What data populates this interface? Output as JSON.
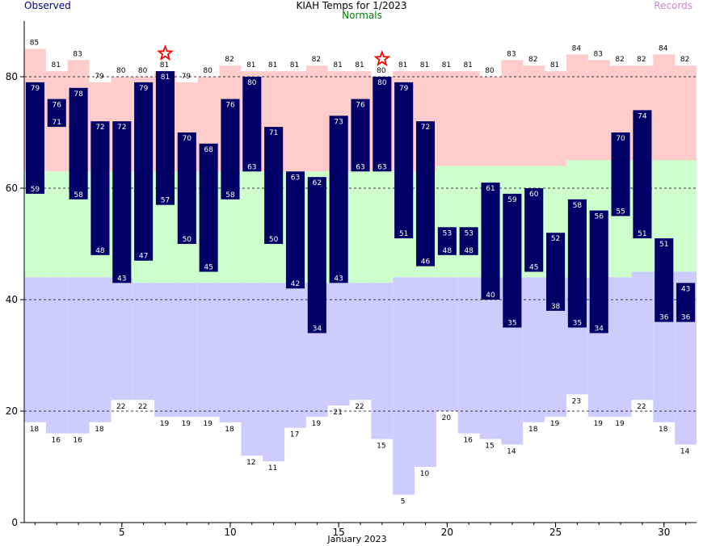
{
  "chart_data": {
    "type": "bar",
    "title": "KIAH Temps for 1/2023",
    "xlabel": "January 2023",
    "ylabel": "",
    "legend": {
      "observed": "Observed",
      "normals": "Normals",
      "records": "Records",
      "placement": "top"
    },
    "colors": {
      "observed_bar": "#000066",
      "observed_text": "#000080",
      "normal_band": "#ccffcc",
      "normals_text": "#008000",
      "record_high_band": "#ffcccc",
      "record_low_band": "#ccccff",
      "records_text": "#cc88cc",
      "star": "#ff0000"
    },
    "xlim": [
      0.5,
      31.5
    ],
    "ylim": [
      0,
      90
    ],
    "x_ticks": [
      5,
      10,
      15,
      20,
      25,
      30
    ],
    "y_ticks": [
      0,
      20,
      40,
      60,
      80
    ],
    "dashed_grid_y": [
      20,
      40,
      60,
      80
    ],
    "days": [
      1,
      2,
      3,
      4,
      5,
      6,
      7,
      8,
      9,
      10,
      11,
      12,
      13,
      14,
      15,
      16,
      17,
      18,
      19,
      20,
      21,
      22,
      23,
      24,
      25,
      26,
      27,
      28,
      29,
      30,
      31
    ],
    "observed_high": [
      79,
      76,
      78,
      72,
      72,
      79,
      81,
      70,
      68,
      76,
      80,
      71,
      63,
      62,
      73,
      76,
      80,
      79,
      72,
      53,
      53,
      61,
      59,
      60,
      52,
      58,
      56,
      70,
      74,
      51,
      43
    ],
    "observed_low": [
      59,
      71,
      58,
      48,
      43,
      47,
      57,
      50,
      45,
      58,
      63,
      50,
      42,
      34,
      43,
      63,
      63,
      51,
      46,
      48,
      48,
      40,
      35,
      45,
      38,
      35,
      34,
      55,
      51,
      36,
      36
    ],
    "normal_high": [
      63,
      63,
      63,
      63,
      63,
      63,
      63,
      63,
      63,
      63,
      63,
      63,
      63,
      63,
      63,
      63,
      63,
      63,
      63,
      64,
      64,
      64,
      64,
      64,
      64,
      65,
      65,
      65,
      65,
      65,
      65
    ],
    "normal_low": [
      44,
      44,
      44,
      44,
      44,
      43,
      43,
      43,
      43,
      43,
      43,
      43,
      43,
      43,
      43,
      43,
      43,
      44,
      44,
      44,
      44,
      44,
      44,
      44,
      44,
      44,
      44,
      44,
      45,
      45,
      45
    ],
    "record_high": [
      85,
      81,
      83,
      79,
      80,
      80,
      81,
      79,
      80,
      82,
      81,
      81,
      81,
      82,
      81,
      81,
      80,
      81,
      81,
      81,
      81,
      80,
      83,
      82,
      81,
      84,
      83,
      82,
      82,
      84,
      82
    ],
    "record_low": [
      18,
      16,
      16,
      18,
      22,
      22,
      19,
      19,
      19,
      18,
      12,
      11,
      17,
      19,
      21,
      22,
      15,
      5,
      10,
      20,
      16,
      15,
      14,
      18,
      19,
      23,
      19,
      19,
      22,
      18,
      14
    ],
    "record_set_days": [
      7,
      17
    ]
  }
}
